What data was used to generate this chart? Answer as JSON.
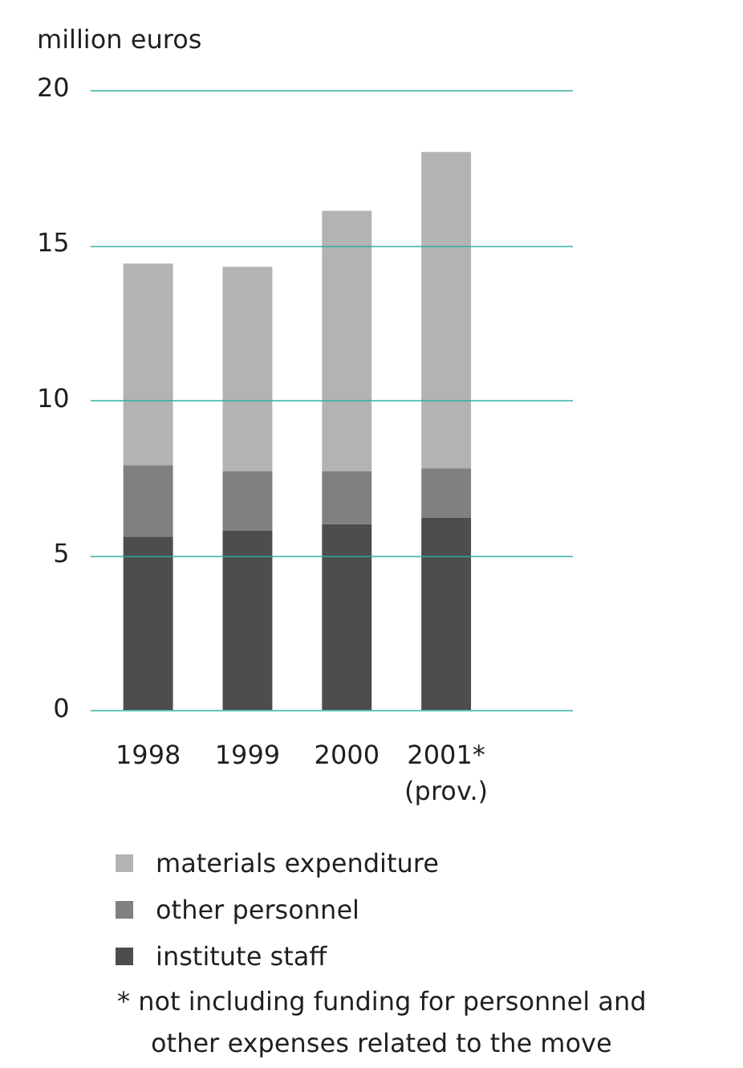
{
  "chart_data": {
    "type": "bar",
    "ylabel": "million euros",
    "categories": [
      "1998",
      "1999",
      "2000",
      "2001*\n(prov.)"
    ],
    "series": [
      {
        "name": "institute staff",
        "color": "#4d4d4d",
        "values": [
          5.6,
          5.8,
          6.0,
          6.2
        ]
      },
      {
        "name": "other personnel",
        "color": "#808080",
        "values": [
          2.3,
          1.9,
          1.7,
          1.6
        ]
      },
      {
        "name": "materials expenditure",
        "color": "#b3b3b3",
        "values": [
          6.5,
          6.6,
          8.4,
          10.2
        ]
      }
    ],
    "stacked": true,
    "ylim": [
      0,
      20
    ],
    "yticks": [
      0,
      5,
      10,
      15,
      20
    ],
    "grid": "y",
    "legend": "bottom",
    "annotations": [
      "* not including funding for personnel and other expenses related to the move"
    ]
  }
}
